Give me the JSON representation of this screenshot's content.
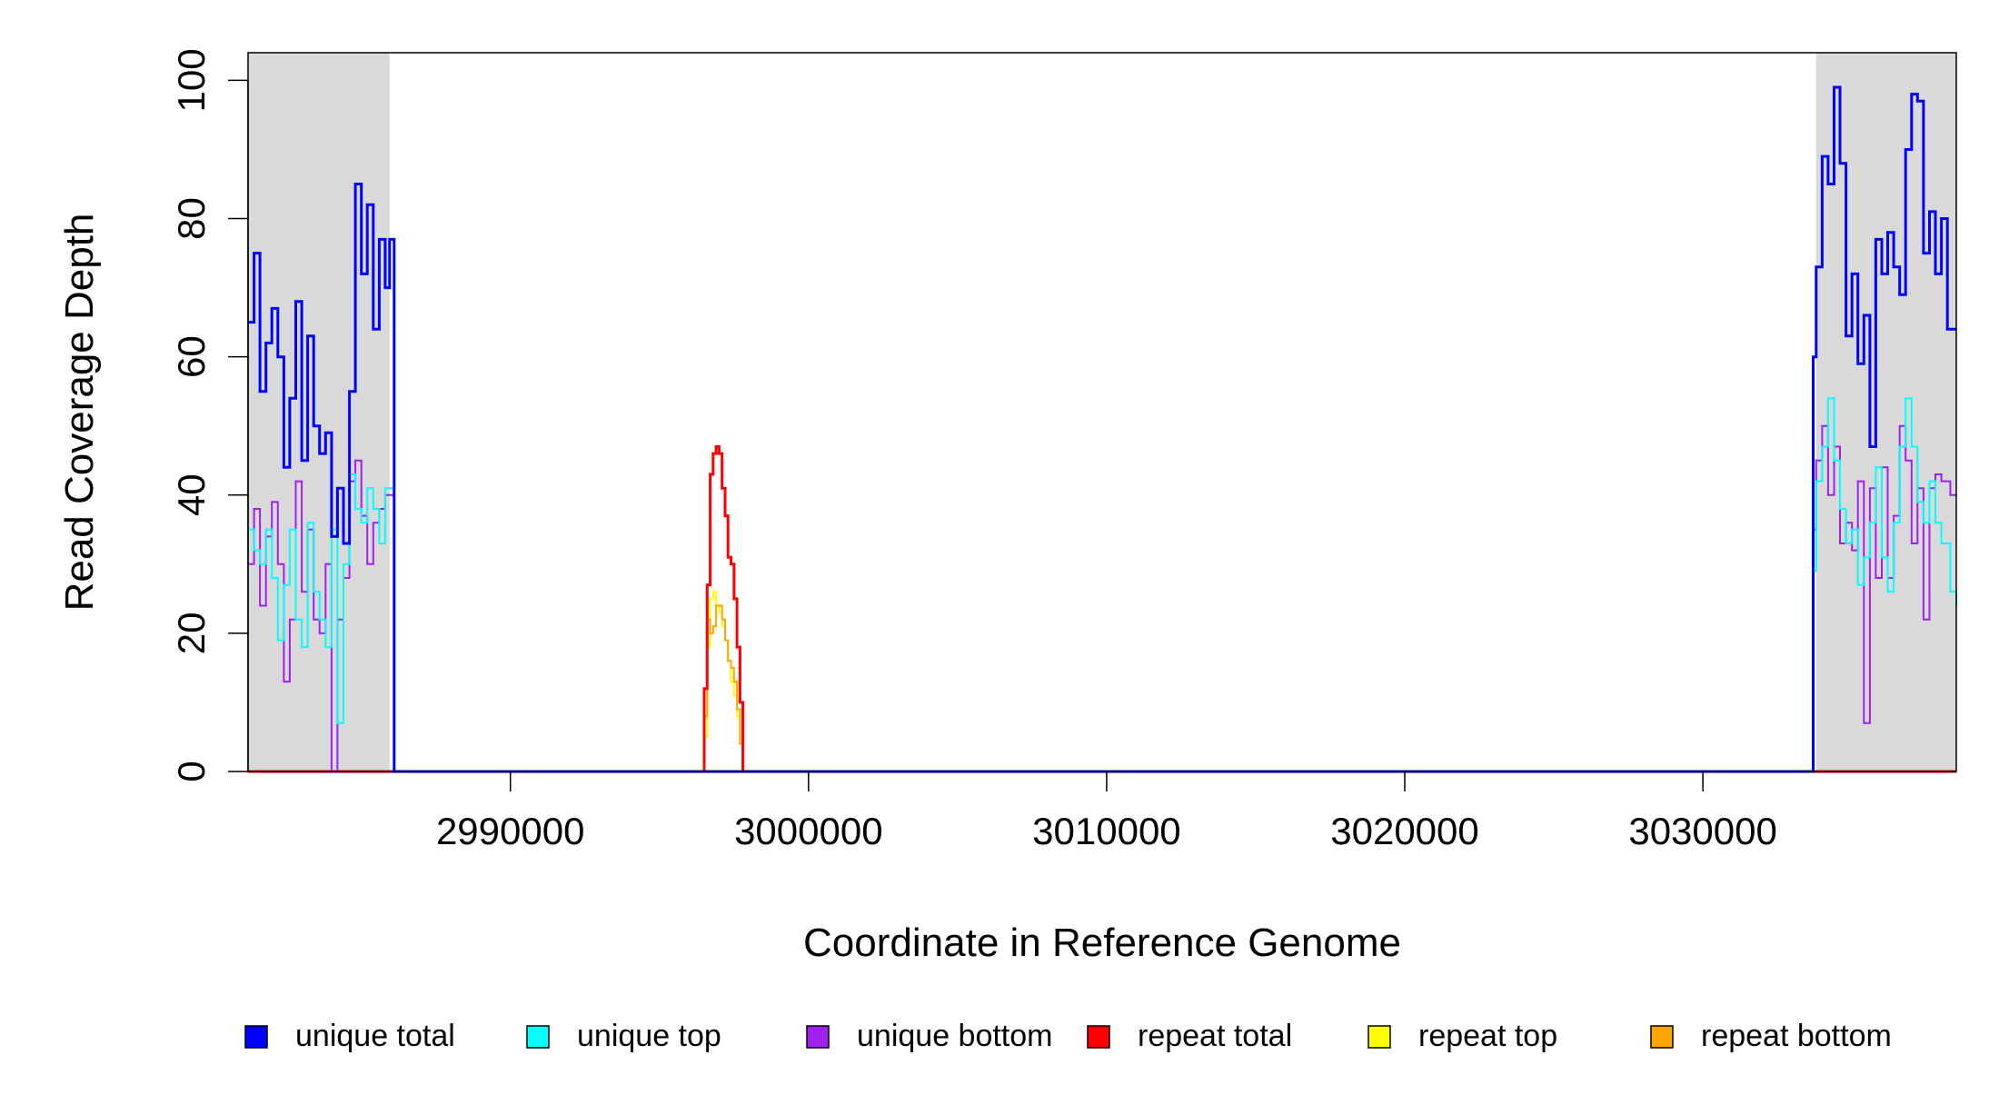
{
  "chart_data": {
    "type": "line",
    "title": "",
    "xlabel": "Coordinate in Reference Genome",
    "ylabel": "Read Coverage Depth",
    "xlim": [
      2981200,
      3038500
    ],
    "ylim": [
      0,
      104
    ],
    "x_ticks": [
      2990000,
      3000000,
      3010000,
      3020000,
      3030000
    ],
    "y_ticks": [
      0,
      20,
      40,
      60,
      80,
      100
    ],
    "grid": false,
    "legend_position": "bottom",
    "shaded_regions": [
      {
        "start": 2981200,
        "end": 2985950,
        "color": "#d9d9d9"
      },
      {
        "start": 3033800,
        "end": 3038500,
        "color": "#d9d9d9"
      }
    ],
    "series": [
      {
        "name": "unique total",
        "color": "#0000ff",
        "x": [
          2981200,
          2981400,
          2981600,
          2981800,
          2982000,
          2982200,
          2982400,
          2982600,
          2982800,
          2983000,
          2983200,
          2983400,
          2983600,
          2983800,
          2984000,
          2984200,
          2984400,
          2984600,
          2984800,
          2985000,
          2985200,
          2985400,
          2985600,
          2985800,
          2985950,
          2986100,
          2990000,
          3000000,
          3010000,
          3020000,
          3030000,
          3033500,
          3033700,
          3033800,
          3034000,
          3034200,
          3034400,
          3034600,
          3034800,
          3035000,
          3035200,
          3035400,
          3035600,
          3035800,
          3036000,
          3036200,
          3036400,
          3036600,
          3036800,
          3037000,
          3037200,
          3037400,
          3037600,
          3037800,
          3038000,
          3038200,
          3038500
        ],
        "values": [
          65,
          75,
          55,
          62,
          67,
          60,
          44,
          54,
          68,
          45,
          63,
          50,
          46,
          49,
          34,
          41,
          33,
          55,
          85,
          72,
          82,
          64,
          77,
          70,
          77,
          0,
          0,
          0,
          0,
          0,
          0,
          0,
          60,
          73,
          89,
          85,
          99,
          88,
          63,
          72,
          59,
          66,
          47,
          77,
          72,
          78,
          73,
          69,
          90,
          98,
          97,
          75,
          81,
          72,
          80,
          64,
          64
        ]
      },
      {
        "name": "unique top",
        "color": "#00ffff",
        "x": [
          2981200,
          2981400,
          2981600,
          2981800,
          2982000,
          2982200,
          2982400,
          2982600,
          2982800,
          2983000,
          2983200,
          2983400,
          2983600,
          2983800,
          2984000,
          2984200,
          2984400,
          2984600,
          2984800,
          2985000,
          2985200,
          2985400,
          2985600,
          2985800,
          2986100,
          2990000,
          3000000,
          3010000,
          3020000,
          3030000,
          3033500,
          3033700,
          3033800,
          3034000,
          3034200,
          3034400,
          3034600,
          3034800,
          3035000,
          3035200,
          3035400,
          3035600,
          3035800,
          3036000,
          3036200,
          3036400,
          3036600,
          3036800,
          3037000,
          3037200,
          3037400,
          3037600,
          3037800,
          3038000,
          3038300,
          3038500
        ],
        "values": [
          35,
          32,
          30,
          35,
          28,
          19,
          27,
          35,
          22,
          18,
          36,
          26,
          22,
          18,
          35,
          7,
          30,
          43,
          38,
          36,
          41,
          38,
          33,
          41,
          0,
          0,
          0,
          0,
          0,
          0,
          0,
          29,
          42,
          47,
          54,
          45,
          38,
          33,
          35,
          27,
          31,
          36,
          44,
          31,
          26,
          36,
          47,
          54,
          47,
          39,
          36,
          42,
          36,
          33,
          26,
          24
        ]
      },
      {
        "name": "unique bottom",
        "color": "#a020f0",
        "x": [
          2981200,
          2981400,
          2981600,
          2981800,
          2982000,
          2982200,
          2982400,
          2982600,
          2982800,
          2983000,
          2983200,
          2983400,
          2983600,
          2983800,
          2984000,
          2984200,
          2984400,
          2984600,
          2984800,
          2985000,
          2985200,
          2985400,
          2985600,
          2985800,
          2986100,
          2990000,
          3000000,
          3010000,
          3020000,
          3030000,
          3033500,
          3033700,
          3033800,
          3034000,
          3034200,
          3034400,
          3034600,
          3034800,
          3035000,
          3035200,
          3035400,
          3035600,
          3035800,
          3036000,
          3036200,
          3036400,
          3036600,
          3036800,
          3037000,
          3037200,
          3037400,
          3037600,
          3037800,
          3038000,
          3038300,
          3038500
        ],
        "values": [
          30,
          38,
          24,
          34,
          39,
          30,
          13,
          22,
          42,
          26,
          35,
          22,
          20,
          30,
          0,
          22,
          28,
          42,
          45,
          37,
          30,
          36,
          38,
          40,
          0,
          0,
          0,
          0,
          0,
          0,
          0,
          35,
          45,
          50,
          40,
          47,
          33,
          36,
          32,
          42,
          7,
          41,
          28,
          44,
          28,
          37,
          50,
          45,
          33,
          41,
          22,
          41,
          43,
          42,
          40,
          40
        ]
      },
      {
        "name": "repeat total",
        "color": "#ff0000",
        "x": [
          2981200,
          2996400,
          2996500,
          2996600,
          2996700,
          2996800,
          2996900,
          2997000,
          2997100,
          2997200,
          2997300,
          2997400,
          2997500,
          2997600,
          2997700,
          2997800,
          3010000,
          3020000,
          3030000,
          3038500
        ],
        "values": [
          0,
          0,
          12,
          27,
          43,
          46,
          47,
          46,
          41,
          37,
          31,
          30,
          25,
          18,
          10,
          0,
          0,
          0,
          0,
          0
        ]
      },
      {
        "name": "repeat top",
        "color": "#ffff00",
        "x": [
          2981200,
          2996400,
          2996500,
          2996600,
          2996700,
          2996800,
          2996900,
          2997000,
          2997100,
          2997200,
          2997300,
          2997400,
          2997500,
          2997600,
          2997700,
          2997800,
          3010000,
          3020000,
          3030000,
          3038500
        ],
        "values": [
          0,
          0,
          5,
          18,
          25,
          26,
          24,
          23,
          21,
          19,
          16,
          13,
          11,
          8,
          4,
          0,
          0,
          0,
          0,
          0
        ]
      },
      {
        "name": "repeat bottom",
        "color": "#ffa500",
        "x": [
          2981200,
          2996400,
          2996500,
          2996600,
          2996700,
          2996800,
          2996900,
          2997000,
          2997100,
          2997200,
          2997300,
          2997400,
          2997500,
          2997600,
          2997700,
          2997800,
          3010000,
          3020000,
          3030000,
          3038500
        ],
        "values": [
          0,
          0,
          8,
          22,
          20,
          21,
          24,
          24,
          22,
          19,
          16,
          15,
          13,
          9,
          4,
          0,
          0,
          0,
          0,
          0
        ]
      }
    ],
    "legend": [
      {
        "label": "unique total",
        "color": "#0000ff"
      },
      {
        "label": "unique top",
        "color": "#00ffff"
      },
      {
        "label": "unique bottom",
        "color": "#a020f0"
      },
      {
        "label": "repeat total",
        "color": "#ff0000"
      },
      {
        "label": "repeat top",
        "color": "#ffff00"
      },
      {
        "label": "repeat bottom",
        "color": "#ffa500"
      }
    ]
  }
}
